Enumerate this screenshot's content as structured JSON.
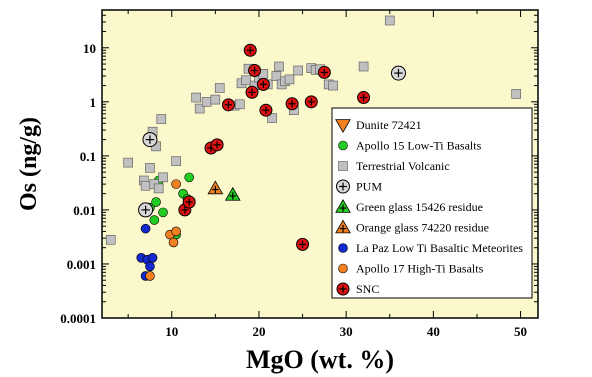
{
  "chart_data": {
    "type": "scatter",
    "title": "",
    "xlabel": "MgO (wt. %)",
    "ylabel": "Os (ng/g)",
    "xlim": [
      2,
      52
    ],
    "ylim": [
      0.0001,
      50
    ],
    "yscale": "log",
    "x_ticks": [
      10,
      20,
      30,
      40,
      50
    ],
    "y_ticks": [
      {
        "value": 0.0001,
        "label": "0.0001"
      },
      {
        "value": 0.001,
        "label": "0.001"
      },
      {
        "value": 0.01,
        "label": "0.01"
      },
      {
        "value": 0.1,
        "label": "0.1"
      },
      {
        "value": 1,
        "label": "1"
      },
      {
        "value": 10,
        "label": "10"
      }
    ],
    "grid": false,
    "legend_position": "bottom-right",
    "background_color": "#fbf8cc",
    "series": [
      {
        "name": "Dunite 72421",
        "marker": "triangle-down",
        "color": "#f08020",
        "points": []
      },
      {
        "name": "Apollo 15 Low-Ti Basalts",
        "marker": "circle",
        "color": "#22cc22",
        "points": [
          [
            7.5,
            0.011
          ],
          [
            8,
            0.0065
          ],
          [
            8.2,
            0.014
          ],
          [
            9,
            0.009
          ],
          [
            10.5,
            0.0035
          ],
          [
            11.3,
            0.02
          ],
          [
            11.8,
            0.016
          ],
          [
            12,
            0.04
          ],
          [
            8.5,
            0.035
          ]
        ]
      },
      {
        "name": "Terrestrial Volcanic",
        "marker": "square",
        "color": "#c0c0c0",
        "points": [
          [
            3,
            0.0028
          ],
          [
            5,
            0.075
          ],
          [
            6.8,
            0.035
          ],
          [
            7,
            0.028
          ],
          [
            7.5,
            0.06
          ],
          [
            8,
            0.03
          ],
          [
            8.5,
            0.025
          ],
          [
            7.8,
            0.28
          ],
          [
            8.2,
            0.15
          ],
          [
            8.8,
            0.48
          ],
          [
            9,
            0.04
          ],
          [
            10.5,
            0.08
          ],
          [
            12.8,
            1.2
          ],
          [
            13.2,
            0.75
          ],
          [
            14,
            1.0
          ],
          [
            15,
            1.1
          ],
          [
            15.5,
            1.8
          ],
          [
            17.2,
            0.85
          ],
          [
            17.8,
            0.9
          ],
          [
            18,
            2.2
          ],
          [
            18.5,
            2.5
          ],
          [
            18.8,
            4.1
          ],
          [
            19.5,
            2.0
          ],
          [
            20,
            2.8
          ],
          [
            20.5,
            3.3
          ],
          [
            21,
            2.1
          ],
          [
            21.5,
            0.5
          ],
          [
            22,
            3.0
          ],
          [
            22.3,
            4.5
          ],
          [
            22.6,
            2.1
          ],
          [
            23,
            2.4
          ],
          [
            23.5,
            2.6
          ],
          [
            24,
            0.7
          ],
          [
            24.5,
            3.8
          ],
          [
            26,
            4.2
          ],
          [
            26.5,
            3.9
          ],
          [
            27,
            4.0
          ],
          [
            28,
            2.1
          ],
          [
            28.5,
            2.0
          ],
          [
            32,
            4.5
          ],
          [
            35,
            32
          ],
          [
            49.5,
            1.4
          ]
        ]
      },
      {
        "name": "PUM",
        "marker": "circle-plus",
        "color": "#d8d8d8",
        "points": [
          [
            7,
            0.01
          ],
          [
            7.5,
            0.2
          ],
          [
            36,
            3.4
          ]
        ]
      },
      {
        "name": "Green glass 15426 residue",
        "marker": "triangle-plus",
        "color": "#22cc22",
        "points": [
          [
            17,
            0.019
          ]
        ]
      },
      {
        "name": "Orange glass 74220 residue",
        "marker": "triangle-plus",
        "color": "#f08020",
        "points": [
          [
            15,
            0.025
          ]
        ]
      },
      {
        "name": "La Paz Low Ti Basaltic Meteorites",
        "marker": "circle",
        "color": "#1428d0",
        "points": [
          [
            6.5,
            0.0013
          ],
          [
            7,
            0.0006
          ],
          [
            7.2,
            0.0012
          ],
          [
            7.5,
            0.0009
          ],
          [
            7.8,
            0.0013
          ],
          [
            7,
            0.0045
          ]
        ]
      },
      {
        "name": "Apollo 17 High-Ti Basalts",
        "marker": "circle",
        "color": "#f08020",
        "points": [
          [
            7.5,
            0.0006
          ],
          [
            9.8,
            0.0035
          ],
          [
            10.2,
            0.0025
          ],
          [
            10.5,
            0.004
          ],
          [
            10.5,
            0.03
          ]
        ]
      },
      {
        "name": "SNC",
        "marker": "circle-plus",
        "color": "#dd1010",
        "points": [
          [
            11.5,
            0.01
          ],
          [
            12,
            0.014
          ],
          [
            14.5,
            0.14
          ],
          [
            15.2,
            0.16
          ],
          [
            19,
            9
          ],
          [
            19.2,
            1.5
          ],
          [
            19.5,
            3.8
          ],
          [
            20.5,
            2.1
          ],
          [
            20.8,
            0.7
          ],
          [
            23.8,
            0.92
          ],
          [
            26,
            1.0
          ],
          [
            27.5,
            3.5
          ],
          [
            32,
            1.2
          ],
          [
            25,
            0.0023
          ],
          [
            16.5,
            0.88
          ]
        ]
      }
    ]
  }
}
